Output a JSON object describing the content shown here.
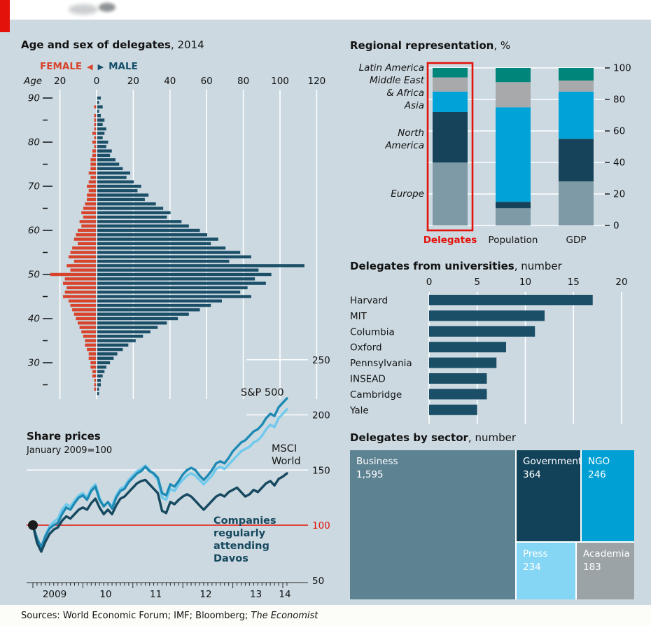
{
  "page": {
    "background": "#ccd9e0",
    "topbar_color": "#ffffff",
    "brand_color": "#e3120b"
  },
  "titles": {
    "pyramid_bold": "Age and sex of delegates",
    "pyramid_rest": ", 2014",
    "share_bold": "Share prices",
    "share_sub": "January 2009=100",
    "regional_bold": "Regional representation",
    "regional_rest": ", %",
    "universities_bold": "Delegates from universities",
    "universities_rest": ", number",
    "sectors_bold": "Delegates by sector",
    "sectors_rest": ", number"
  },
  "legend": {
    "female": "FEMALE",
    "male": "MALE"
  },
  "icons": {
    "left_arrow": "◀",
    "right_arrow": "▶"
  },
  "footer": {
    "sources_prefix": "Sources: World Economic Forum; IMF; Bloomberg; ",
    "sources_italic": "The Economist"
  },
  "chart_data": [
    {
      "id": "pyramid",
      "type": "bar",
      "title": "Age and sex of delegates, 2014",
      "age_label": "Age",
      "x_ticks": [
        20,
        0,
        20,
        40,
        60,
        80,
        100,
        120
      ],
      "age_ticks": [
        90,
        80,
        70,
        60,
        50,
        40,
        30
      ],
      "male_color": "#1b4f68",
      "female_color": "#d8432c",
      "ages": [
        90,
        89,
        88,
        87,
        86,
        85,
        84,
        83,
        82,
        81,
        80,
        79,
        78,
        77,
        76,
        75,
        74,
        73,
        72,
        71,
        70,
        69,
        68,
        67,
        66,
        65,
        64,
        63,
        62,
        61,
        60,
        59,
        58,
        57,
        56,
        55,
        54,
        53,
        52,
        51,
        50,
        49,
        48,
        47,
        46,
        45,
        44,
        43,
        42,
        41,
        40,
        39,
        38,
        37,
        36,
        35,
        34,
        33,
        32,
        31,
        30,
        29,
        28,
        27,
        26,
        25,
        24,
        23
      ],
      "male": [
        2,
        1,
        3,
        1,
        2,
        4,
        3,
        5,
        4,
        3,
        6,
        5,
        8,
        7,
        10,
        12,
        14,
        18,
        16,
        20,
        24,
        22,
        28,
        26,
        32,
        36,
        40,
        38,
        46,
        50,
        56,
        60,
        66,
        62,
        70,
        78,
        84,
        72,
        113,
        88,
        95,
        86,
        92,
        82,
        78,
        84,
        68,
        62,
        56,
        50,
        44,
        38,
        33,
        29,
        25,
        21,
        17,
        14,
        11,
        9,
        7,
        5,
        4,
        3,
        2,
        2,
        1,
        1
      ],
      "female": [
        0,
        0,
        1,
        0,
        1,
        1,
        1,
        1,
        2,
        1,
        2,
        1,
        2,
        2,
        3,
        3,
        3,
        4,
        3,
        4,
        5,
        4,
        5,
        5,
        6,
        7,
        8,
        7,
        9,
        8,
        10,
        11,
        12,
        10,
        13,
        14,
        15,
        12,
        16,
        14,
        25,
        17,
        18,
        16,
        17,
        18,
        15,
        14,
        13,
        12,
        11,
        10,
        9,
        8,
        7,
        6,
        6,
        5,
        4,
        4,
        3,
        3,
        2,
        2,
        1,
        1,
        1,
        0
      ]
    },
    {
      "id": "share_prices",
      "type": "line",
      "title": "Share prices",
      "subtitle": "January 2009=100",
      "baseline": 100,
      "baseline_color": "#e3120b",
      "y_ticks": [
        250,
        200,
        150,
        100,
        50
      ],
      "x_labels": [
        "2009",
        "10",
        "11",
        "12",
        "13",
        "14"
      ],
      "series": [
        {
          "name": "S&P 500",
          "color": "#1e8ab4",
          "label_lines": [
            "S&P 500"
          ],
          "values": [
            100,
            88,
            80,
            90,
            97,
            100,
            102,
            110,
            116,
            114,
            120,
            125,
            127,
            123,
            131,
            135,
            123,
            117,
            121,
            115,
            125,
            131,
            133,
            139,
            143,
            147,
            149,
            153,
            149,
            147,
            143,
            129,
            127,
            137,
            135,
            140,
            146,
            150,
            152,
            150,
            145,
            141,
            145,
            150,
            156,
            158,
            156,
            161,
            167,
            171,
            175,
            177,
            181,
            185,
            187,
            191,
            197,
            201,
            199,
            207,
            211,
            215
          ]
        },
        {
          "name": "MSCI World",
          "color": "#6fc9ec",
          "label_lines": [
            "MSCI",
            "World"
          ],
          "values": [
            100,
            86,
            79,
            91,
            99,
            103,
            106,
            114,
            119,
            117,
            122,
            127,
            129,
            125,
            133,
            137,
            125,
            117,
            121,
            117,
            127,
            133,
            135,
            141,
            145,
            149,
            151,
            154,
            150,
            146,
            141,
            125,
            123,
            133,
            131,
            137,
            141,
            145,
            147,
            145,
            141,
            137,
            141,
            145,
            151,
            153,
            151,
            155,
            159,
            163,
            167,
            169,
            171,
            175,
            177,
            181,
            187,
            191,
            189,
            197,
            201,
            205
          ]
        },
        {
          "name": "Companies regularly attending Davos",
          "color": "#16485f",
          "label_lines": [
            "Companies",
            "regularly",
            "attending",
            "Davos"
          ],
          "values": [
            100,
            84,
            76,
            85,
            92,
            96,
            98,
            104,
            108,
            106,
            110,
            114,
            116,
            114,
            120,
            124,
            116,
            110,
            114,
            110,
            118,
            124,
            126,
            130,
            134,
            138,
            140,
            141,
            137,
            133,
            129,
            113,
            111,
            121,
            119,
            123,
            126,
            128,
            126,
            122,
            118,
            114,
            118,
            122,
            126,
            128,
            126,
            130,
            132,
            134,
            130,
            126,
            128,
            132,
            130,
            134,
            138,
            140,
            136,
            142,
            144,
            147
          ]
        }
      ]
    },
    {
      "id": "regional",
      "type": "stacked_bar",
      "title": "Regional representation, %",
      "categories": [
        "Delegates",
        "Population",
        "GDP"
      ],
      "segments": [
        "Europe",
        "North America",
        "Asia",
        "Middle East & Africa",
        "Latin America"
      ],
      "colors": [
        "#7e9aa6",
        "#16435a",
        "#00a3d8",
        "#a7a9ab",
        "#00857b"
      ],
      "values": {
        "Delegates": [
          40,
          32,
          13,
          9,
          6
        ],
        "Population": [
          11,
          4,
          60,
          16,
          9
        ],
        "GDP": [
          28,
          27,
          30,
          7,
          8
        ]
      },
      "y_ticks": [
        0,
        20,
        40,
        60,
        80,
        100
      ],
      "ylim": [
        0,
        100
      ],
      "highlight": "Delegates",
      "highlight_color": "#e3120b",
      "axis_labels": [
        "Latin America",
        "Middle East",
        "& Africa",
        "Asia",
        "North",
        "America",
        "Europe"
      ]
    },
    {
      "id": "universities",
      "type": "bar",
      "title": "Delegates from universities, number",
      "categories": [
        "Harvard",
        "MIT",
        "Columbia",
        "Oxford",
        "Pennsylvania",
        "INSEAD",
        "Cambridge",
        "Yale"
      ],
      "values": [
        17,
        12,
        11,
        8,
        7,
        6,
        6,
        5
      ],
      "x_ticks": [
        0,
        5,
        10,
        15,
        20
      ],
      "xlim": [
        0,
        20
      ],
      "bar_color": "#1b4f68"
    },
    {
      "id": "sectors",
      "type": "treemap",
      "title": "Delegates by sector, number",
      "items": [
        {
          "name": "Business",
          "value": "1,595",
          "color": "#5d8292"
        },
        {
          "name": "Government",
          "value": "364",
          "color": "#12425a"
        },
        {
          "name": "NGO",
          "value": "246",
          "color": "#00a0d4"
        },
        {
          "name": "Press",
          "value": "234",
          "color": "#85d6f4"
        },
        {
          "name": "Academia",
          "value": "183",
          "color": "#9ba3a7"
        }
      ]
    }
  ]
}
